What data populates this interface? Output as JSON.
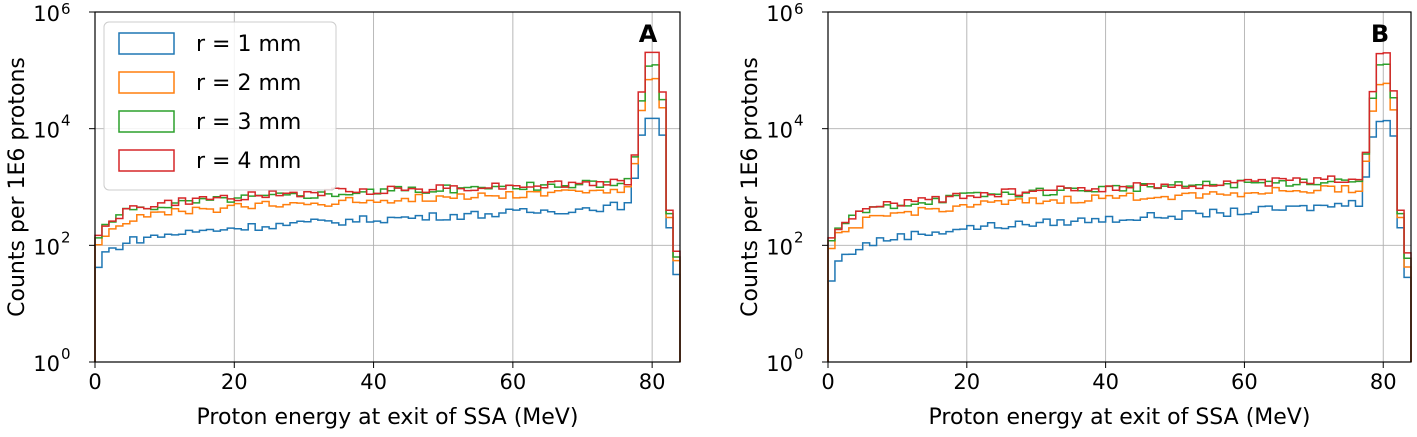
{
  "chart_data": [
    {
      "type": "histogram",
      "panel_label": "A",
      "xlabel": "Proton energy at exit of SSA (MeV)",
      "ylabel": "Counts per 1E6 protons",
      "xlim": [
        0,
        84
      ],
      "ylim_log10": [
        0,
        6
      ],
      "yscale": "log",
      "grid": true,
      "x_ticks": [
        "0",
        "20",
        "40",
        "60",
        "80"
      ],
      "y_ticks": [
        {
          "base": "10",
          "exp": "0"
        },
        {
          "base": "10",
          "exp": "2"
        },
        {
          "base": "10",
          "exp": "4"
        },
        {
          "base": "10",
          "exp": "6"
        }
      ],
      "legend": {
        "position": "upper-left",
        "entries": [
          "r = 1 mm",
          "r = 2 mm",
          "r = 3 mm",
          "r = 4 mm"
        ]
      },
      "series": [
        {
          "name": "r = 1 mm",
          "color": "#1f77b4",
          "anchors": [
            [
              0,
              25
            ],
            [
              1,
              70
            ],
            [
              5,
              120
            ],
            [
              10,
              150
            ],
            [
              20,
              200
            ],
            [
              40,
              280
            ],
            [
              60,
              360
            ],
            [
              70,
              420
            ],
            [
              77,
              500
            ],
            [
              78,
              4000
            ],
            [
              79,
              15000
            ],
            [
              81,
              15000
            ],
            [
              82,
              4000
            ],
            [
              82.5,
              200
            ],
            [
              83,
              100
            ],
            [
              84,
              10
            ]
          ]
        },
        {
          "name": "r = 2 mm",
          "color": "#ff7f0e",
          "anchors": [
            [
              0,
              70
            ],
            [
              1,
              150
            ],
            [
              5,
              280
            ],
            [
              10,
              350
            ],
            [
              20,
              450
            ],
            [
              40,
              600
            ],
            [
              60,
              750
            ],
            [
              70,
              850
            ],
            [
              77,
              900
            ],
            [
              78,
              7000
            ],
            [
              79,
              60000
            ],
            [
              80,
              80000
            ],
            [
              81,
              65000
            ],
            [
              82,
              8000
            ],
            [
              82.5,
              300
            ],
            [
              83,
              150
            ],
            [
              84,
              20
            ]
          ]
        },
        {
          "name": "r = 3 mm",
          "color": "#2ca02c",
          "anchors": [
            [
              0,
              90
            ],
            [
              1,
              200
            ],
            [
              5,
              400
            ],
            [
              10,
              500
            ],
            [
              20,
              650
            ],
            [
              40,
              850
            ],
            [
              60,
              1000
            ],
            [
              70,
              1100
            ],
            [
              77,
              1200
            ],
            [
              78,
              9000
            ],
            [
              79,
              100000
            ],
            [
              80,
              140000
            ],
            [
              81,
              110000
            ],
            [
              82,
              9000
            ],
            [
              82.5,
              350
            ],
            [
              83,
              200
            ],
            [
              84,
              20
            ]
          ]
        },
        {
          "name": "r = 4 mm",
          "color": "#d62728",
          "anchors": [
            [
              0,
              100
            ],
            [
              1,
              220
            ],
            [
              5,
              420
            ],
            [
              10,
              520
            ],
            [
              20,
              680
            ],
            [
              40,
              880
            ],
            [
              60,
              1050
            ],
            [
              70,
              1150
            ],
            [
              77,
              1250
            ],
            [
              78,
              10000
            ],
            [
              79,
              180000
            ],
            [
              80,
              230000
            ],
            [
              81,
              180000
            ],
            [
              82,
              10000
            ],
            [
              82.5,
              400
            ],
            [
              83,
              250
            ],
            [
              84,
              25
            ]
          ]
        }
      ]
    },
    {
      "type": "histogram",
      "panel_label": "B",
      "xlabel": "Proton energy at exit of SSA (MeV)",
      "ylabel": "Counts per 1E6 protons",
      "xlim": [
        0,
        84
      ],
      "ylim_log10": [
        0,
        6
      ],
      "yscale": "log",
      "grid": true,
      "x_ticks": [
        "0",
        "20",
        "40",
        "60",
        "80"
      ],
      "y_ticks": [
        {
          "base": "10",
          "exp": "0"
        },
        {
          "base": "10",
          "exp": "2"
        },
        {
          "base": "10",
          "exp": "4"
        },
        {
          "base": "10",
          "exp": "6"
        }
      ],
      "series": [
        {
          "name": "r = 1 mm",
          "color": "#1f77b4",
          "anchors": [
            [
              0,
              12
            ],
            [
              1,
              50
            ],
            [
              5,
              100
            ],
            [
              10,
              140
            ],
            [
              20,
              200
            ],
            [
              40,
              280
            ],
            [
              60,
              380
            ],
            [
              70,
              450
            ],
            [
              77,
              550
            ],
            [
              78,
              4000
            ],
            [
              79,
              13000
            ],
            [
              81,
              14000
            ],
            [
              82,
              4000
            ],
            [
              82.5,
              200
            ],
            [
              83,
              80
            ],
            [
              84,
              10
            ]
          ]
        },
        {
          "name": "r = 2 mm",
          "color": "#ff7f0e",
          "anchors": [
            [
              0,
              60
            ],
            [
              1,
              130
            ],
            [
              5,
              250
            ],
            [
              10,
              350
            ],
            [
              20,
              480
            ],
            [
              40,
              650
            ],
            [
              60,
              800
            ],
            [
              70,
              900
            ],
            [
              77,
              950
            ],
            [
              78,
              8000
            ],
            [
              79,
              50000
            ],
            [
              80,
              65000
            ],
            [
              81,
              55000
            ],
            [
              82,
              8000
            ],
            [
              82.5,
              300
            ],
            [
              83,
              120
            ],
            [
              84,
              15
            ]
          ]
        },
        {
          "name": "r = 3 mm",
          "color": "#2ca02c",
          "anchors": [
            [
              0,
              80
            ],
            [
              1,
              180
            ],
            [
              5,
              380
            ],
            [
              10,
              500
            ],
            [
              20,
              700
            ],
            [
              40,
              950
            ],
            [
              60,
              1150
            ],
            [
              70,
              1250
            ],
            [
              77,
              1350
            ],
            [
              78,
              10000
            ],
            [
              79,
              110000
            ],
            [
              80,
              140000
            ],
            [
              81,
              115000
            ],
            [
              82,
              10000
            ],
            [
              82.5,
              350
            ],
            [
              83,
              180
            ],
            [
              84,
              20
            ]
          ]
        },
        {
          "name": "r = 4 mm",
          "color": "#d62728",
          "anchors": [
            [
              0,
              90
            ],
            [
              1,
              200
            ],
            [
              5,
              400
            ],
            [
              10,
              530
            ],
            [
              20,
              720
            ],
            [
              40,
              980
            ],
            [
              60,
              1180
            ],
            [
              70,
              1300
            ],
            [
              77,
              1400
            ],
            [
              78,
              11000
            ],
            [
              79,
              170000
            ],
            [
              80,
              220000
            ],
            [
              81,
              180000
            ],
            [
              82,
              11000
            ],
            [
              82.5,
              400
            ],
            [
              83,
              220
            ],
            [
              84,
              25
            ]
          ]
        }
      ]
    }
  ]
}
